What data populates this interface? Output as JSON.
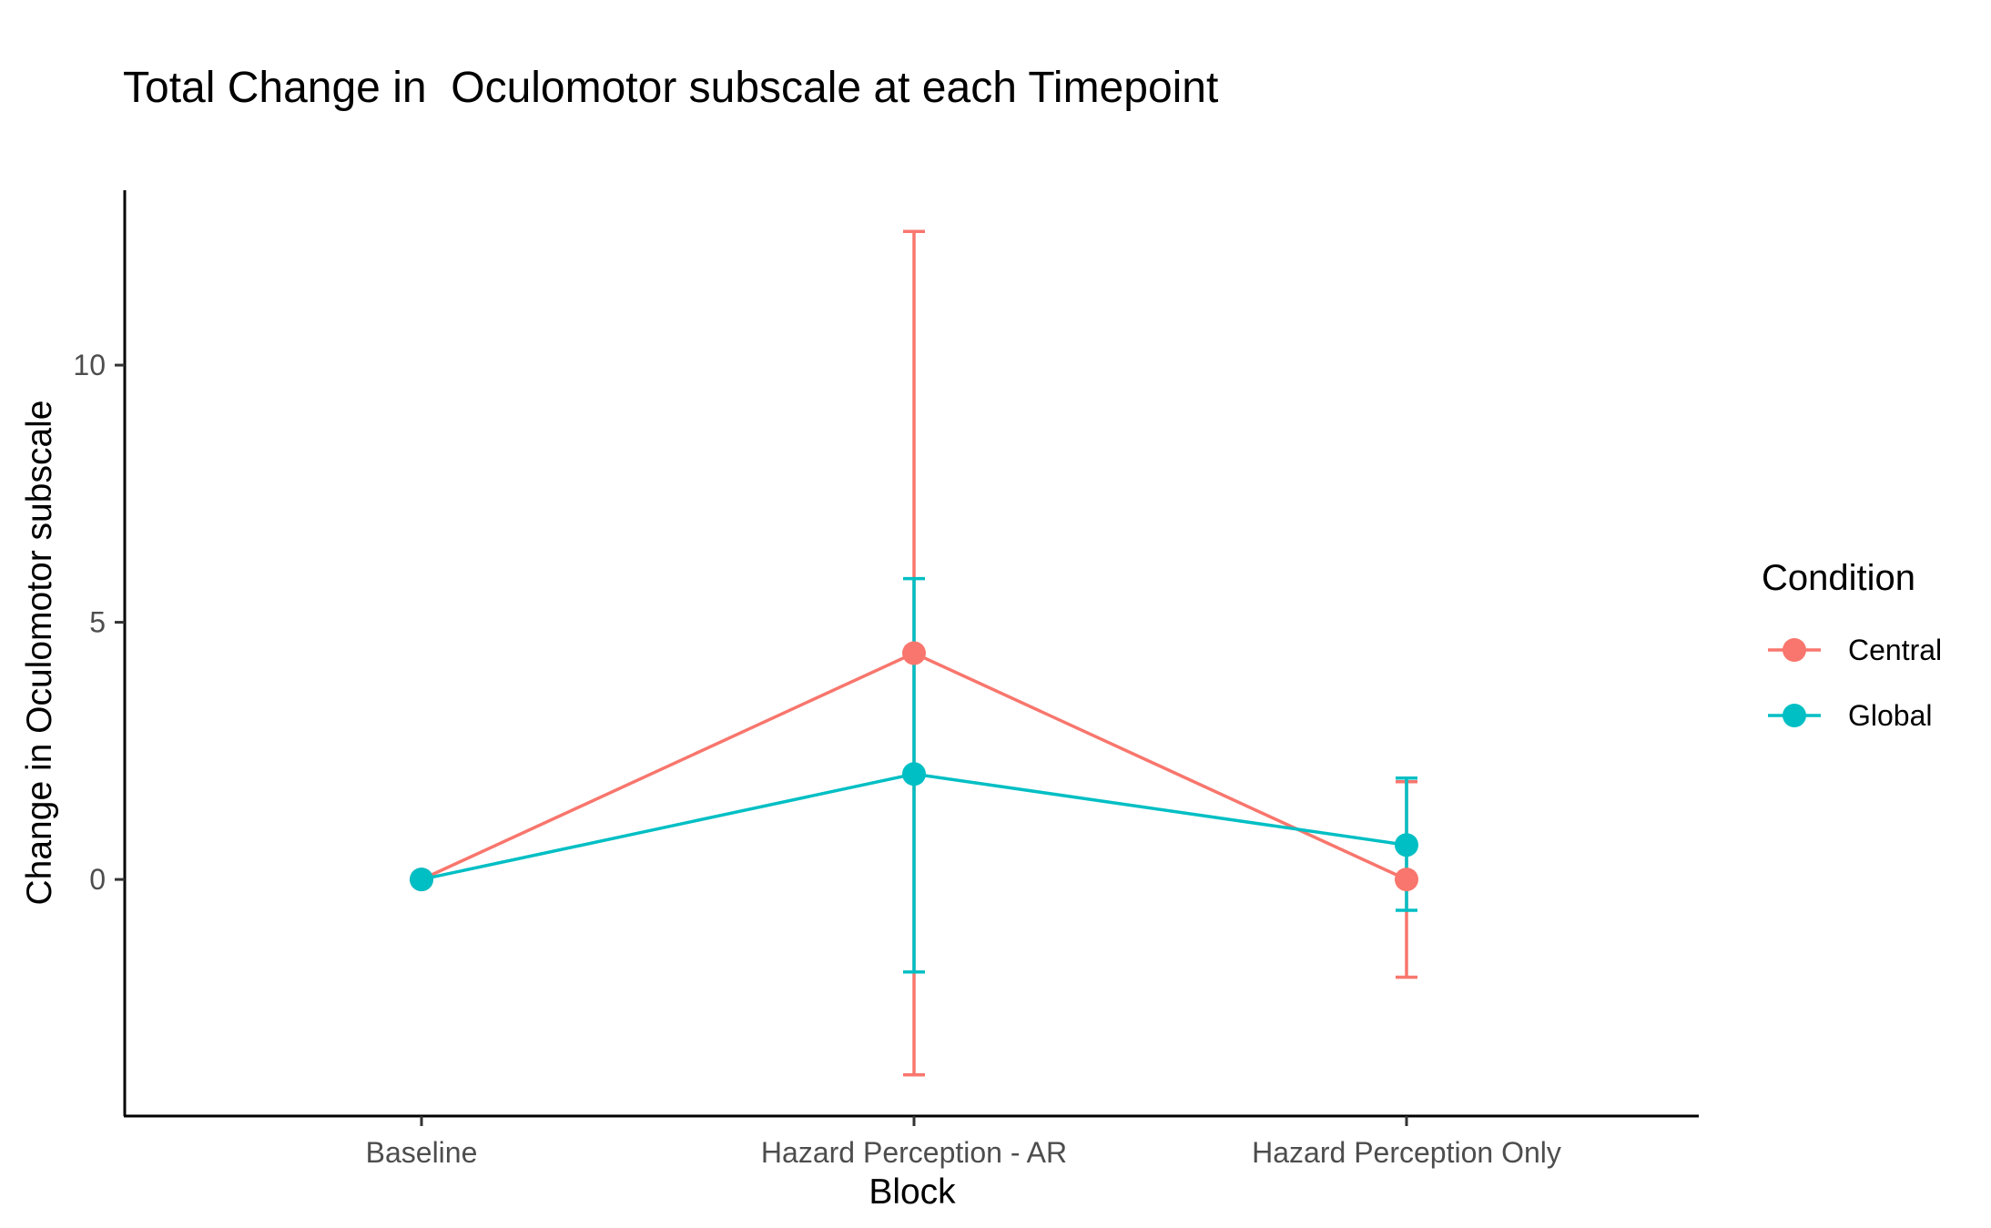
{
  "chart_data": {
    "type": "line",
    "title": "Total Change in  Oculomotor subscale at each Timepoint",
    "xlabel": "Block",
    "ylabel": "Change in Oculomotor subscale",
    "categories": [
      "Baseline",
      "Hazard Perception - AR",
      "Hazard Perception Only"
    ],
    "y_ticks": [
      0,
      5,
      10
    ],
    "ylim": [
      -4.6,
      13.4
    ],
    "grid": false,
    "legend": {
      "title": "Condition",
      "position": "right"
    },
    "series": [
      {
        "name": "Central",
        "color": "#F8766D",
        "values": [
          0,
          4.4,
          0
        ],
        "error_low": [
          0,
          -3.8,
          -1.9
        ],
        "error_high": [
          0,
          12.6,
          1.9
        ]
      },
      {
        "name": "Global",
        "color": "#00BFC4",
        "values": [
          0,
          2.05,
          0.67
        ],
        "error_low": [
          0,
          -1.8,
          -0.6
        ],
        "error_high": [
          0,
          5.85,
          1.97
        ]
      }
    ]
  }
}
